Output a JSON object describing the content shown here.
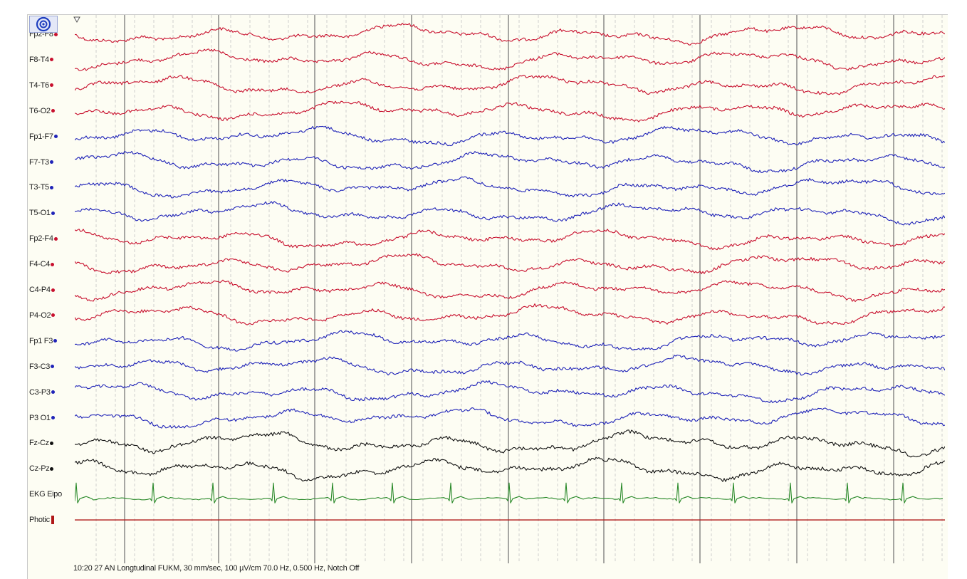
{
  "channels": [
    {
      "label": "Fp2-F8",
      "color": "#c8102e",
      "marker": "dot"
    },
    {
      "label": "F8-T4",
      "color": "#c8102e",
      "marker": "dot"
    },
    {
      "label": "T4-T6",
      "color": "#c8102e",
      "marker": "dot"
    },
    {
      "label": "T6-O2",
      "color": "#c8102e",
      "marker": "dot"
    },
    {
      "label": "Fp1-F7",
      "color": "#1f23b8",
      "marker": "dot"
    },
    {
      "label": "F7-T3",
      "color": "#1f23b8",
      "marker": "dot"
    },
    {
      "label": "T3-T5",
      "color": "#1f23b8",
      "marker": "dot"
    },
    {
      "label": "T5-O1",
      "color": "#1f23b8",
      "marker": "dot"
    },
    {
      "label": "Fp2-F4",
      "color": "#c8102e",
      "marker": "dot"
    },
    {
      "label": "F4-C4",
      "color": "#c8102e",
      "marker": "dot"
    },
    {
      "label": "C4-P4",
      "color": "#c8102e",
      "marker": "dot"
    },
    {
      "label": "P4-O2",
      "color": "#c8102e",
      "marker": "dot"
    },
    {
      "label": "Fp1 F3",
      "color": "#1f23b8",
      "marker": "dot"
    },
    {
      "label": "F3-C3",
      "color": "#1f23b8",
      "marker": "dot"
    },
    {
      "label": "C3-P3",
      "color": "#1f23b8",
      "marker": "dot"
    },
    {
      "label": "P3 O1",
      "color": "#1f23b8",
      "marker": "dot"
    },
    {
      "label": "Fz-Cz",
      "color": "#111111",
      "marker": "dot"
    },
    {
      "label": "Cz-Pz",
      "color": "#111111",
      "marker": "dot"
    },
    {
      "label": "EKG Eipo",
      "color": "#2a8a2a",
      "marker": "none"
    },
    {
      "label": "Photic",
      "color": "#b01818",
      "marker": "bar"
    }
  ],
  "status": {
    "text": "10:20 27 AN Longtudinal FUKM, 30 mm/sec, 100 µV/cm 70.0 Hz, 0.500 Hz, Notch Off"
  },
  "toolbar": {
    "settings_icon": "target-icon",
    "marker_icon": "triangle-marker-icon"
  },
  "colors": {
    "background": "#fdfdf3",
    "grid_major": "#6e6e6e",
    "grid_minor": "#c4c4c4",
    "right_hemisphere": "#c8102e",
    "left_hemisphere": "#1f23b8",
    "midline": "#111111",
    "ekg": "#2a8a2a",
    "photic": "#b01818"
  }
}
